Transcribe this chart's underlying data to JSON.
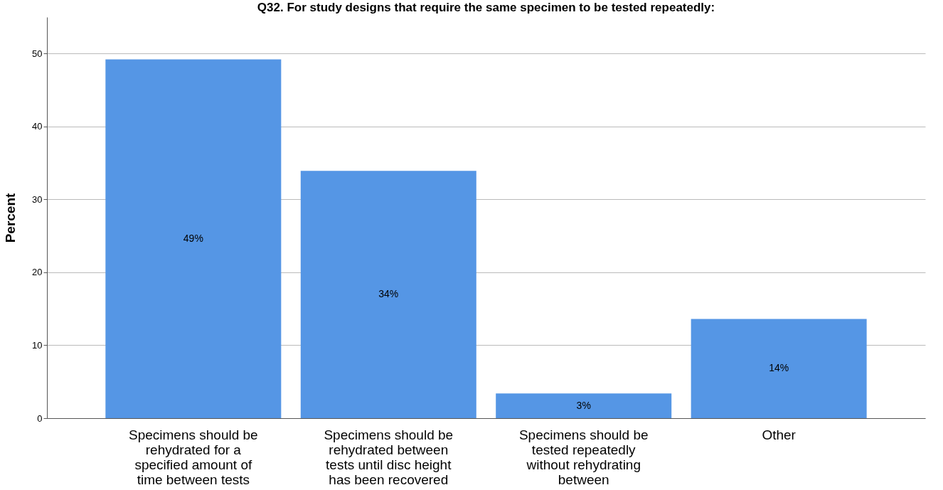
{
  "chart_data": {
    "type": "bar",
    "title": "Q32. For study designs that require the same specimen to be tested repeatedly:",
    "ylabel": "Percent",
    "categories": [
      "Specimens should be rehydrated for a specified amount of time between tests",
      "Specimens should be rehydrated between tests until disc height has been recovered",
      "Specimens should be tested repeatedly without rehydrating between",
      "Other"
    ],
    "values": [
      49.2,
      33.9,
      3.4,
      13.6
    ],
    "value_labels": [
      "49%",
      "34%",
      "3%",
      "14%"
    ],
    "color": "#5596e5",
    "ylim": [
      0,
      55
    ],
    "yticks": [
      0,
      10,
      20,
      30,
      40,
      50
    ],
    "grid": "y"
  }
}
